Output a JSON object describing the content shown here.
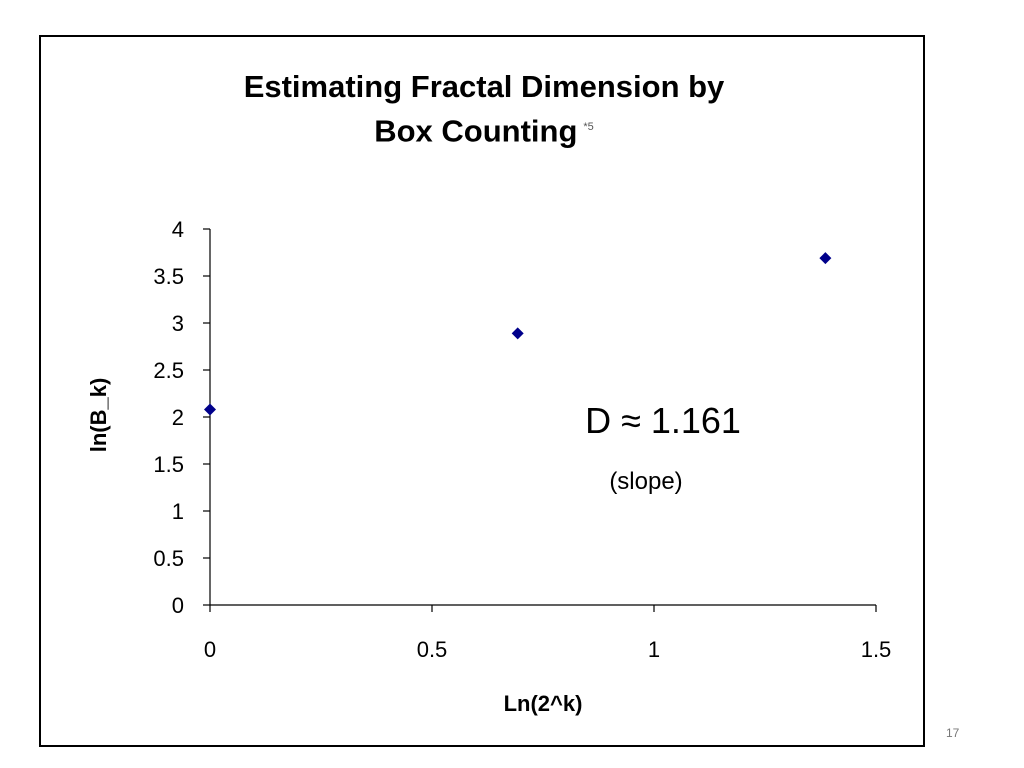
{
  "slide_number": "17",
  "colors": {
    "marker": "#00008b",
    "axis": "#000000",
    "text": "#000000"
  },
  "chart_data": {
    "type": "scatter",
    "title_line1": "Estimating Fractal Dimension by",
    "title_line2": "Box Counting",
    "title_superscript": "*5",
    "xlabel": "Ln(2^k)",
    "ylabel": "ln(B_k)",
    "xlim": [
      0,
      1.5
    ],
    "ylim": [
      0,
      4
    ],
    "xticks": [
      "0",
      "0.5",
      "1",
      "1.5"
    ],
    "yticks": [
      "0",
      "0.5",
      "1",
      "1.5",
      "2",
      "2.5",
      "3",
      "3.5",
      "4"
    ],
    "x": [
      0,
      0.693,
      1.386
    ],
    "y": [
      2.08,
      2.89,
      3.69
    ],
    "grid": false,
    "annotation_formula": "D ≈ 1.161",
    "annotation_note": "(slope)"
  }
}
